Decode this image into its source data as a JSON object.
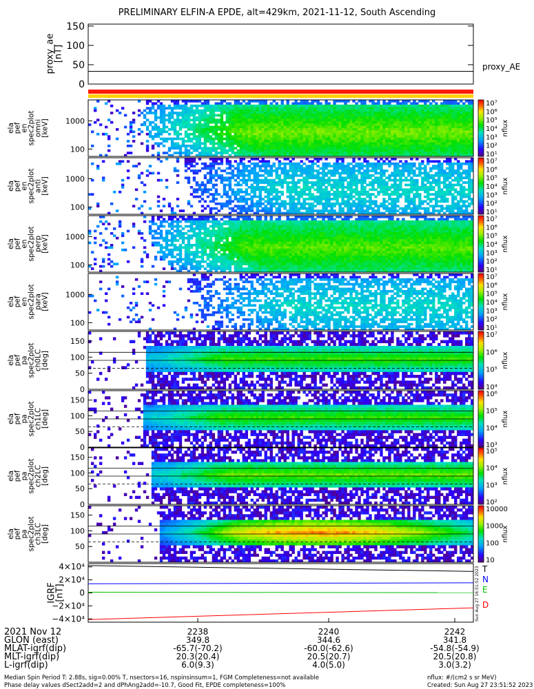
{
  "title": "PRELIMINARY ELFIN-A EPDE, alt=429km, 2021-11-12, South Ascending",
  "proxy_ae": {
    "ylabel": [
      "proxy_ae",
      "[nT]"
    ],
    "ticks": [
      "150",
      "100",
      "50",
      "0"
    ],
    "ylim": [
      0,
      155
    ],
    "legend": "proxy_AE",
    "value": 33
  },
  "energy_panels": [
    {
      "ylabel": [
        "ela",
        "pef",
        "en",
        "spec2plot",
        "omni",
        "[keV]"
      ],
      "ticks": [
        "1000",
        "100"
      ],
      "cbar_ticks": [
        "10⁷",
        "10⁶",
        "10⁵",
        "10⁴",
        "10³",
        "10²",
        "10¹"
      ],
      "cbar_label": "nflux"
    },
    {
      "ylabel": [
        "ela",
        "pef",
        "en",
        "spec2plot",
        "anti",
        "[keV]"
      ],
      "ticks": [
        "1000",
        "100"
      ],
      "cbar_ticks": [
        "10⁷",
        "10⁶",
        "10⁵",
        "10⁴",
        "10³",
        "10²",
        "10¹"
      ],
      "cbar_label": "nflux"
    },
    {
      "ylabel": [
        "ela",
        "pef",
        "en",
        "spec2plot",
        "perp",
        "[keV]"
      ],
      "ticks": [
        "1000",
        "100"
      ],
      "cbar_ticks": [
        "10⁷",
        "10⁶",
        "10⁵",
        "10⁴",
        "10³",
        "10²",
        "10¹"
      ],
      "cbar_label": "nflux"
    },
    {
      "ylabel": [
        "ela",
        "pef",
        "en",
        "spec2plot",
        "para",
        "[keV]"
      ],
      "ticks": [
        "1000",
        "100"
      ],
      "cbar_ticks": [
        "10⁷",
        "10⁶",
        "10⁵",
        "10⁴",
        "10³",
        "10²",
        "10¹"
      ],
      "cbar_label": "nflux"
    }
  ],
  "pitch_panels": [
    {
      "ylabel": [
        "ela",
        "pef",
        "pa",
        "spec2plot",
        "ch0LC",
        "[deg]"
      ],
      "ticks": [
        "150",
        "100",
        "50",
        "0"
      ],
      "cbar_ticks": [
        "10⁷",
        "10⁶",
        "10⁵",
        "10⁴"
      ],
      "cbar_label": "nflux"
    },
    {
      "ylabel": [
        "ela",
        "pef",
        "pa",
        "spec2plot",
        "ch1LC",
        "[deg]"
      ],
      "ticks": [
        "150",
        "100",
        "50",
        "0"
      ],
      "cbar_ticks": [
        "10⁶",
        "10⁵",
        "10⁴",
        "10³"
      ],
      "cbar_label": "nflux"
    },
    {
      "ylabel": [
        "ela",
        "pef",
        "pa",
        "spec2plot",
        "ch2LC",
        "[deg]"
      ],
      "ticks": [
        "150",
        "100",
        "50",
        "0"
      ],
      "cbar_ticks": [
        "10⁵",
        "10⁴",
        "10³",
        "10²"
      ],
      "cbar_label": "nflux"
    },
    {
      "ylabel": [
        "ela",
        "pef",
        "pa",
        "spec2plot",
        "ch3LC",
        "[deg]"
      ],
      "ticks": [
        "150",
        "100",
        "50"
      ],
      "cbar_ticks": [
        "10000",
        "1000",
        "100",
        "10"
      ],
      "cbar_label": "nflux"
    }
  ],
  "igrf": {
    "ylabel": [
      "IGRF",
      "[nT]"
    ],
    "ticks": [
      "4×10⁴",
      "2×10⁴",
      "0",
      "−2×10⁴",
      "−4×10⁴"
    ],
    "legend": [
      {
        "label": "T",
        "color": "#000000"
      },
      {
        "label": "N",
        "color": "#0000ff"
      },
      {
        "label": "E",
        "color": "#00c000"
      },
      {
        "label": "D",
        "color": "#ff0000"
      }
    ],
    "side_stamp": "Sun Aug 27 16:51:52 2023"
  },
  "chart_data": {
    "type": "heatmap",
    "x_ticks": [
      "2238",
      "2240",
      "2242"
    ],
    "x_tick_meaning": "time (HHMM UT)",
    "ephemeris_rows": [
      {
        "label": "2021 Nov 12",
        "values": [
          "2238",
          "2240",
          "2242"
        ]
      },
      {
        "label": "GLON (east)",
        "values": [
          "349.8",
          "344.6",
          "341.8"
        ]
      },
      {
        "label": "MLAT-igrf(dip)",
        "values": [
          "-65.7(-70.2)",
          "-60.0(-62.6)",
          "-54.8(-54.9)"
        ]
      },
      {
        "label": "MLT-igrf(dip)",
        "values": [
          "20.3(20.4)",
          "20.5(20.7)",
          "20.5(20.8)"
        ]
      },
      {
        "label": "L-igrf(dip)",
        "values": [
          "6.0(9.3)",
          "4.0(5.0)",
          "3.0(3.2)"
        ]
      }
    ],
    "proxy_ae_nT": 33,
    "igrf_series": [
      {
        "name": "T",
        "start": 42000,
        "end": 33000
      },
      {
        "name": "N",
        "start": 14000,
        "end": 15500
      },
      {
        "name": "E",
        "start": 1000,
        "end": 400
      },
      {
        "name": "D",
        "start": -41000,
        "end": -23000
      }
    ]
  },
  "footer": {
    "left_1": "Median Spin Period T: 2.88s, sig=0.00% T, nsectors=16, nspinsinsum=1, FGM Completeness=not available",
    "left_2": "Phase delay values dSect2add=2 and dPhAng2add=-10.7, Good Fit, EPDE completeness=100%",
    "right_1": "nflux: #/(cm2 s sr MeV)",
    "right_2": "Created: Sun Aug 27 23:51:52 2023"
  }
}
